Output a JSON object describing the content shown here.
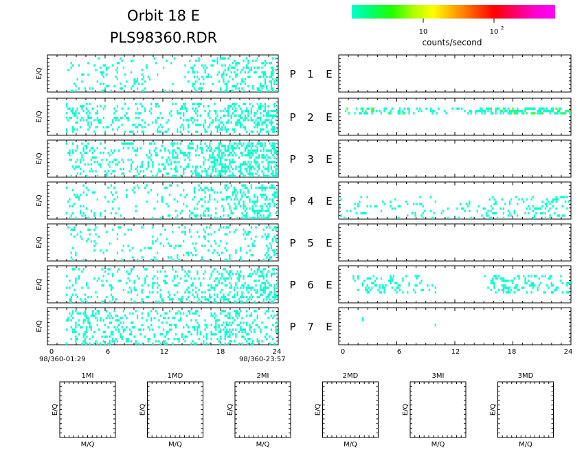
{
  "header": {
    "title": "Orbit 18 E",
    "subtitle": "PLS98360.RDR"
  },
  "colorbar": {
    "tick_10": "10",
    "tick_100_base": "10",
    "tick_100_exp": "2",
    "label": "counts/second",
    "stops": [
      "#00ffcc",
      "#00ff66",
      "#22ff00",
      "#aaff00",
      "#ffff00",
      "#ffaa00",
      "#ff5500",
      "#ff0000",
      "#ff0066",
      "#ff00cc",
      "#ff00ff"
    ]
  },
  "panel_ylabel": "E/Q",
  "time_axis": {
    "ticks": [
      "0",
      "6",
      "12",
      "18",
      "24"
    ],
    "start_label": "98/360-01:29",
    "end_label": "98/360-23:57"
  },
  "chart_data": [
    {
      "type": "heatmap",
      "name": "left-spectrogram-stack",
      "xlim": [
        0,
        24
      ],
      "x_ticks": [
        0,
        6,
        12,
        18,
        24
      ],
      "ylabel": "E/Q",
      "channels": [
        {
          "label": "P",
          "num": "1",
          "density": [
            0.55,
            0.25,
            0.2,
            0.22,
            0.25,
            0.2,
            0.12,
            0.1,
            0.22,
            0.18,
            0.16,
            0.3,
            0.22,
            0.3,
            0.15,
            0.1,
            0.05,
            0.05,
            0.08,
            0.1,
            0.02,
            0.05,
            0.18,
            0.3,
            0.3,
            0.32,
            0.35,
            0.4,
            0.38,
            0.42,
            0.4,
            0.45,
            0.42,
            0.5,
            0.48,
            0.55
          ],
          "rows": [
            0.05,
            0.95
          ],
          "color": "#00ffcc"
        },
        {
          "label": "P",
          "num": "2",
          "density": [
            0.6,
            0.7,
            0.55,
            0.45,
            0.35,
            0.38,
            0.3,
            0.3,
            0.35,
            0.3,
            0.32,
            0.35,
            0.35,
            0.4,
            0.35,
            0.3,
            0.28,
            0.3,
            0.28,
            0.25,
            0.3,
            0.32,
            0.38,
            0.4,
            0.42,
            0.45,
            0.48,
            0.52,
            0.55,
            0.58,
            0.6,
            0.62,
            0.65,
            0.66,
            0.68,
            0.7
          ],
          "rows": [
            0.1,
            0.9
          ],
          "color": "#00ffcc"
        },
        {
          "label": "P",
          "num": "3",
          "density": [
            0.2,
            0.3,
            0.35,
            0.4,
            0.38,
            0.32,
            0.3,
            0.25,
            0.28,
            0.3,
            0.28,
            0.25,
            0.28,
            0.3,
            0.3,
            0.32,
            0.35,
            0.38,
            0.4,
            0.45,
            0.48,
            0.5,
            0.55,
            0.58,
            0.6,
            0.62,
            0.65,
            0.68,
            0.7,
            0.72,
            0.74,
            0.76,
            0.78,
            0.8,
            0.8,
            0.8
          ],
          "rows": [
            0.05,
            0.95
          ],
          "color": "#00ffcc"
        },
        {
          "label": "P",
          "num": "4",
          "density": [
            0.25,
            0.2,
            0.15,
            0.2,
            0.25,
            0.2,
            0.15,
            0.12,
            0.15,
            0.18,
            0.15,
            0.12,
            0.1,
            0.12,
            0.1,
            0.12,
            0.15,
            0.18,
            0.2,
            0.22,
            0.25,
            0.28,
            0.3,
            0.32,
            0.35,
            0.38,
            0.4,
            0.42,
            0.45,
            0.48,
            0.5,
            0.52,
            0.55,
            0.55,
            0.58,
            0.6
          ],
          "rows": [
            0.05,
            0.95
          ],
          "color": "#00ffcc"
        },
        {
          "label": "P",
          "num": "5",
          "density": [
            0.1,
            0.08,
            0.1,
            0.12,
            0.15,
            0.12,
            0.1,
            0.12,
            0.15,
            0.15,
            0.12,
            0.1,
            0.12,
            0.1,
            0.1,
            0.12,
            0.15,
            0.18,
            0.15,
            0.12,
            0.15,
            0.18,
            0.2,
            0.22,
            0.25,
            0.22,
            0.2,
            0.25,
            0.28,
            0.25,
            0.22,
            0.3,
            0.28,
            0.25,
            0.3,
            0.32
          ],
          "rows": [
            0.05,
            0.95
          ],
          "color": "#00ffcc"
        },
        {
          "label": "P",
          "num": "6",
          "density": [
            0.3,
            0.25,
            0.28,
            0.3,
            0.25,
            0.22,
            0.2,
            0.22,
            0.25,
            0.22,
            0.2,
            0.22,
            0.25,
            0.22,
            0.2,
            0.22,
            0.25,
            0.28,
            0.25,
            0.28,
            0.3,
            0.32,
            0.35,
            0.38,
            0.4,
            0.42,
            0.45,
            0.48,
            0.5,
            0.52,
            0.55,
            0.55,
            0.58,
            0.6,
            0.62,
            0.65
          ],
          "rows": [
            0.05,
            0.95
          ],
          "color": "#00ffcc"
        },
        {
          "label": "P",
          "num": "7",
          "density": [
            0.25,
            0.4,
            0.45,
            0.5,
            0.55,
            0.5,
            0.45,
            0.4,
            0.38,
            0.4,
            0.35,
            0.3,
            0.32,
            0.3,
            0.28,
            0.3,
            0.28,
            0.25,
            0.28,
            0.3,
            0.32,
            0.35,
            0.38,
            0.4,
            0.42,
            0.45,
            0.48,
            0.5,
            0.48,
            0.45,
            0.42,
            0.4,
            0.35,
            0.3,
            0.28,
            0.4
          ],
          "rows": [
            0.05,
            0.95
          ],
          "color": "#00ffcc"
        }
      ]
    },
    {
      "type": "heatmap",
      "name": "right-spectrogram-stack",
      "xlim": [
        0,
        24
      ],
      "x_ticks": [
        0,
        6,
        12,
        18,
        24
      ],
      "channels": [
        {
          "label": "E",
          "density": [],
          "rows": [
            0.4,
            0.6
          ],
          "color": "#00ffcc"
        },
        {
          "label": "E",
          "density": [
            0.1,
            0.2,
            0.55,
            0.7,
            0.8,
            0.8,
            0.75,
            0.75,
            0.65,
            0.55,
            0.5,
            0.4,
            0.35,
            0.3,
            0.3,
            0.25,
            0.3,
            0.3,
            0.35,
            0.4,
            0.45,
            0.5,
            0.7,
            0.85,
            0.9,
            0.92,
            0.95,
            0.95,
            0.95,
            0.95,
            0.95,
            0.95,
            0.95,
            0.95,
            0.95,
            0.95
          ],
          "rows": [
            0.22,
            0.4
          ],
          "color": "#00ffcc",
          "hot": 0.2
        },
        {
          "label": "E",
          "density": [],
          "rows": [
            0.4,
            0.6
          ],
          "color": "#00ffcc"
        },
        {
          "label": "E",
          "density": [
            0.2,
            0.15,
            0.2,
            0.18,
            0.15,
            0.1,
            0.12,
            0.1,
            0.12,
            0.15,
            0.12,
            0.1,
            0.1,
            0.12,
            0.1,
            0.12,
            0.15,
            0.12,
            0.1,
            0.12,
            0.15,
            0.18,
            0.2,
            0.22,
            0.25,
            0.28,
            0.3,
            0.32,
            0.35,
            0.38,
            0.35,
            0.4,
            0.38,
            0.35,
            0.3,
            0.25
          ],
          "rows": [
            0.35,
            0.95
          ],
          "color": "#00ffcc"
        },
        {
          "label": "E",
          "density": [],
          "rows": [
            0.4,
            0.6
          ],
          "color": "#00ffcc"
        },
        {
          "label": "E",
          "density": [
            0.0,
            0.0,
            0.2,
            0.35,
            0.5,
            0.55,
            0.45,
            0.4,
            0.45,
            0.35,
            0.3,
            0.25,
            0.3,
            0.2,
            0.15,
            0.05,
            0.0,
            0.0,
            0.0,
            0.0,
            0.0,
            0.0,
            0.1,
            0.45,
            0.55,
            0.6,
            0.55,
            0.5,
            0.6,
            0.55,
            0.5,
            0.45,
            0.4,
            0.35,
            0.3,
            0.3
          ],
          "rows": [
            0.2,
            0.7
          ],
          "color": "#00ffcc"
        },
        {
          "label": "E",
          "density": [
            0.0,
            0.0,
            0.0,
            0.04,
            0.0,
            0.0,
            0.0,
            0.0,
            0.0,
            0.0,
            0.0,
            0.0,
            0.0,
            0.0,
            0.04,
            0.0,
            0.0,
            0.0,
            0.0,
            0.0,
            0.0,
            0.0,
            0.0,
            0.0,
            0.0,
            0.0,
            0.0,
            0.0,
            0.0,
            0.0,
            0.0,
            0.0,
            0.0,
            0.0,
            0.0,
            0.0
          ],
          "rows": [
            0.2,
            0.5
          ],
          "color": "#00ffcc"
        }
      ]
    },
    {
      "type": "scatter",
      "name": "mass-per-charge-panels",
      "xlabel": "M/Q",
      "ylabel": "E/Q",
      "panels": [
        "1MI",
        "1MD",
        "2MI",
        "2MD",
        "3MI",
        "3MD"
      ]
    }
  ]
}
